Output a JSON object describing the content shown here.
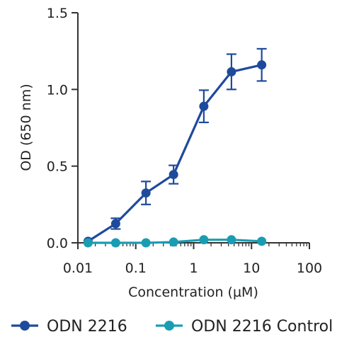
{
  "chart_data": {
    "type": "scatter",
    "title": "",
    "xlabel": "Concentration (µM)",
    "ylabel": "OD (650 nm)",
    "x_scale": "log",
    "xlim": [
      0.01,
      100
    ],
    "ylim": [
      0,
      1.5
    ],
    "x_ticks": [
      "0.01",
      "0.1",
      "1",
      "10",
      "100"
    ],
    "y_ticks": [
      "0.0",
      "0.5",
      "1.0",
      "1.5"
    ],
    "x_tick_values": [
      0.01,
      0.1,
      1,
      10,
      100
    ],
    "y_tick_values": [
      0,
      0.5,
      1.0,
      1.5
    ],
    "grid": false,
    "legend_position": "bottom",
    "series": [
      {
        "name": "ODN 2216",
        "color": "#1e4a9c",
        "x": [
          0.015,
          0.045,
          0.15,
          0.45,
          1.5,
          4.5,
          15
        ],
        "y": [
          0.01,
          0.125,
          0.325,
          0.445,
          0.89,
          1.115,
          1.16
        ],
        "err": [
          0.0,
          0.035,
          0.075,
          0.06,
          0.105,
          0.115,
          0.105
        ]
      },
      {
        "name": "ODN 2216 Control",
        "color": "#1a9db3",
        "x": [
          0.015,
          0.045,
          0.15,
          0.45,
          1.5,
          4.5,
          15
        ],
        "y": [
          0.0,
          0.0,
          0.0,
          0.005,
          0.02,
          0.02,
          0.01
        ],
        "err": [
          0.0,
          0.0,
          0.0,
          0.0,
          0.0,
          0.0,
          0.0
        ]
      }
    ]
  }
}
